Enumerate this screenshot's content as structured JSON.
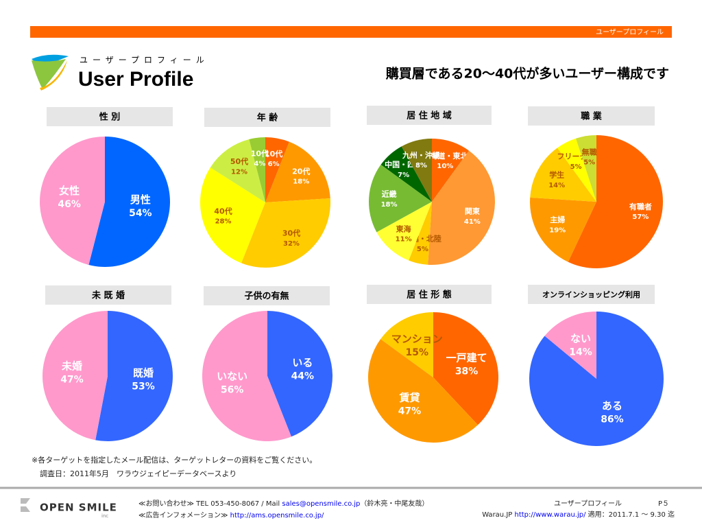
{
  "header": {
    "bar_text": "ユーザープロフィール",
    "subtitle": "ユーザープロフィール",
    "title": "User Profile",
    "headline": "購買層である20〜40代が多いユーザー構成です"
  },
  "chart_data": [
    {
      "type": "pie",
      "title": "性 別",
      "categories": [
        "男性",
        "女性"
      ],
      "values": [
        54,
        46
      ],
      "value_labels": [
        "54%",
        "46%"
      ],
      "colors": [
        "#0066ff",
        "#ff99cc"
      ]
    },
    {
      "type": "pie",
      "title": "年 齢",
      "categories": [
        "10代",
        "20代",
        "30代",
        "40代",
        "50代",
        "10代"
      ],
      "values": [
        6,
        18,
        32,
        28,
        12,
        4
      ],
      "value_labels": [
        "6%",
        "18%",
        "32%",
        "28%",
        "12%",
        "4%"
      ],
      "colors": [
        "#ff6600",
        "#ff9900",
        "#ffcc00",
        "#ffff00",
        "#ccee44",
        "#99cc33"
      ]
    },
    {
      "type": "pie",
      "title": "居 住 地 域",
      "categories": [
        "北海道・東北",
        "関東",
        "信越・北陸",
        "東海",
        "近畿",
        "中国・四国",
        "九州・沖縄"
      ],
      "values": [
        10,
        41,
        5,
        11,
        18,
        7,
        8
      ],
      "value_labels": [
        "10%",
        "41%",
        "5%",
        "11%",
        "18%",
        "7%",
        "8%"
      ],
      "colors": [
        "#ff6600",
        "#ff9933",
        "#ffcc00",
        "#ffff33",
        "#77bb33",
        "#006600",
        "#807a10"
      ]
    },
    {
      "type": "pie",
      "title": "職 業",
      "categories": [
        "有職者",
        "主婦",
        "学生",
        "フリーター",
        "無職"
      ],
      "values": [
        57,
        19,
        14,
        5,
        5
      ],
      "value_labels": [
        "57%",
        "19%",
        "14%",
        "5%",
        "5%"
      ],
      "colors": [
        "#ff6600",
        "#ff9900",
        "#ffcc00",
        "#ffff00",
        "#ccdd33"
      ]
    },
    {
      "type": "pie",
      "title": "未 既 婚",
      "categories": [
        "既婚",
        "未婚"
      ],
      "values": [
        53,
        47
      ],
      "value_labels": [
        "53%",
        "47%"
      ],
      "colors": [
        "#3366ff",
        "#ff99cc"
      ]
    },
    {
      "type": "pie",
      "title": "子供の有無",
      "categories": [
        "いる",
        "いない"
      ],
      "values": [
        44,
        56
      ],
      "value_labels": [
        "44%",
        "56%"
      ],
      "colors": [
        "#3366ff",
        "#ff99cc"
      ]
    },
    {
      "type": "pie",
      "title": "居 住 形 態",
      "categories": [
        "一戸建て",
        "賃貸",
        "マンション"
      ],
      "values": [
        38,
        47,
        15
      ],
      "value_labels": [
        "38%",
        "47%",
        "15%"
      ],
      "colors": [
        "#ff6600",
        "#ff9900",
        "#ffcc00"
      ]
    },
    {
      "type": "pie",
      "title": "オンラインショッピング利用",
      "categories": [
        "ある",
        "ない"
      ],
      "values": [
        86,
        14
      ],
      "value_labels": [
        "86%",
        "14%"
      ],
      "colors": [
        "#3366ff",
        "#ff99cc"
      ]
    }
  ],
  "footer": {
    "note": "※各ターゲットを指定したメール配信は、ターゲットレターの資料をご覧ください。",
    "source": "調査日：2011年5月　ワラウジェイピーデータベースより",
    "logo": "OPEN SMILE",
    "logo_sub": "inc",
    "contact": "≪お問い合わせ≫ TEL 053-450-8067 / Mail ",
    "contact_mail": "sales@opensmile.co.jp",
    "contact_names": "（鈴木亮・中尾友哉）",
    "ad": "≪広告インフォメーション≫ ",
    "ad_url": "http://ams.opensmile.co.jp/",
    "page_title": "ユーザープロフィール",
    "page_no": "P５",
    "site": "Warau.JP ",
    "site_url": "http://www.warau.jp/",
    "period": " 適用：2011.7.1 〜 9.30 迄"
  }
}
